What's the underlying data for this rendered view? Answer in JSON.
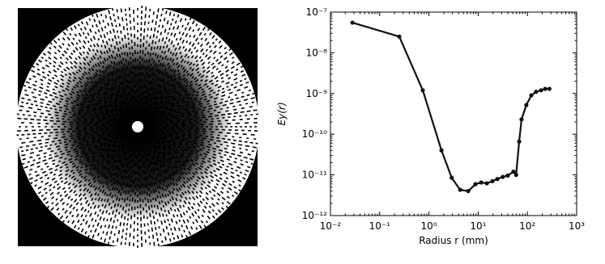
{
  "chart_data": {
    "type": "line",
    "xlabel": "Radius r (mm)",
    "ylabel": "Ey(r)",
    "xscale": "log",
    "yscale": "log",
    "xlim": [
      0.01,
      1000
    ],
    "ylim": [
      1e-12,
      1e-07
    ],
    "xticks": [
      {
        "value": 0.01,
        "label": "10⁻²"
      },
      {
        "value": 0.1,
        "label": "10⁻¹"
      },
      {
        "value": 1,
        "label": "10⁰"
      },
      {
        "value": 10,
        "label": "10¹"
      },
      {
        "value": 100,
        "label": "10²"
      },
      {
        "value": 1000,
        "label": "10³"
      }
    ],
    "yticks": [
      {
        "value": 1e-12,
        "label": "10⁻¹²"
      },
      {
        "value": 1e-11,
        "label": "10⁻¹¹"
      },
      {
        "value": 1e-10,
        "label": "10⁻¹⁰"
      },
      {
        "value": 1e-09,
        "label": "10⁻⁹"
      },
      {
        "value": 1e-08,
        "label": "10⁻⁸"
      },
      {
        "value": 1e-07,
        "label": "10⁻⁷"
      }
    ],
    "series": [
      {
        "color": "#111111",
        "x": [
          0.028,
          0.25,
          0.75,
          1.8,
          2.9,
          4.3,
          6.3,
          8.8,
          11.5,
          15,
          19.5,
          24.5,
          31.6,
          40,
          52,
          59,
          68,
          76,
          95,
          120,
          150,
          190,
          230,
          280
        ],
        "values": [
          5.5e-08,
          2.5e-08,
          1.2e-09,
          4e-11,
          8.5e-12,
          4.3e-12,
          4e-12,
          5.9e-12,
          6.5e-12,
          6.2e-12,
          7e-12,
          7.9e-12,
          8.9e-12,
          9.6e-12,
          1.2e-11,
          1e-11,
          6.6e-11,
          2.3e-10,
          5.2e-10,
          9e-10,
          1.1e-09,
          1.2e-09,
          1.3e-09,
          1.3e-09
        ]
      }
    ]
  }
}
